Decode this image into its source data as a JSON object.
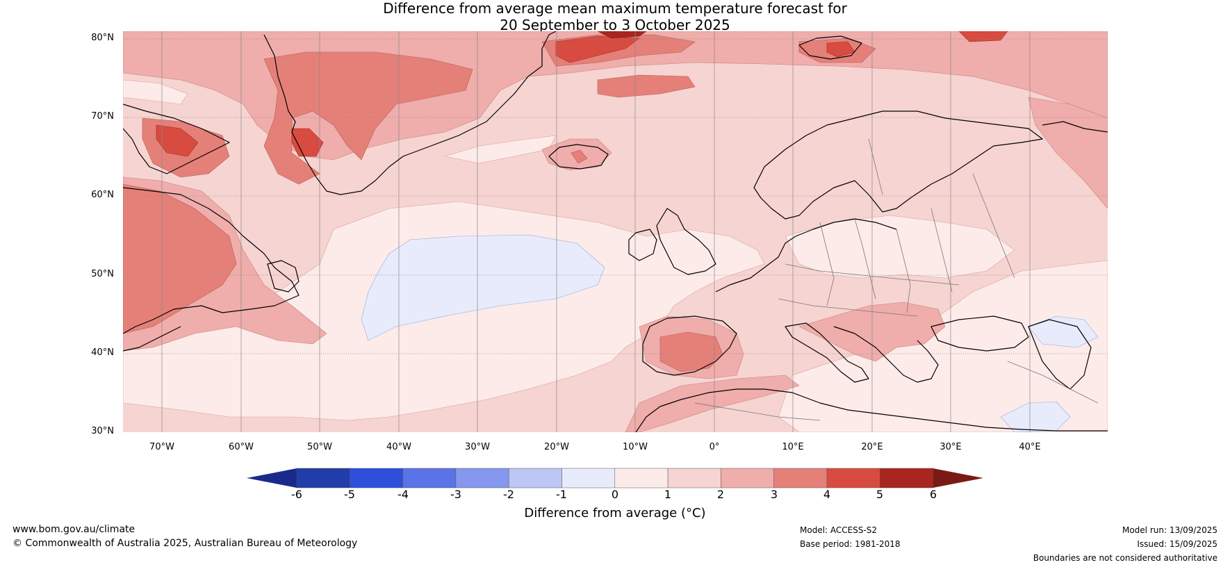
{
  "title": {
    "line1": "Difference from average mean maximum temperature forecast for",
    "line2": "20 September to 3 October 2025"
  },
  "map": {
    "lat_labels": [
      "80°N",
      "70°N",
      "60°N",
      "50°N",
      "40°N",
      "30°N"
    ],
    "lat_values": [
      80,
      70,
      60,
      50,
      40,
      30
    ],
    "lon_labels": [
      "70°W",
      "60°W",
      "50°W",
      "40°W",
      "30°W",
      "20°W",
      "10°W",
      "0°",
      "10°E",
      "20°E",
      "30°E",
      "40°E"
    ],
    "lon_values": [
      -70,
      -60,
      -50,
      -40,
      -30,
      -20,
      -10,
      0,
      10,
      20,
      30,
      40
    ],
    "lon_range": [
      -75,
      50
    ],
    "lat_range": [
      30,
      81
    ],
    "background_color": "#f6d4d1"
  },
  "colorbar": {
    "ticks": [
      "-6",
      "-5",
      "-4",
      "-3",
      "-2",
      "-1",
      "0",
      "1",
      "2",
      "3",
      "4",
      "5",
      "6"
    ],
    "colors": [
      "#213da9",
      "#2d4fdc",
      "#5a73e6",
      "#8697ee",
      "#bcc7f4",
      "#e7ebfb",
      "#fcebe9",
      "#f6d4d1",
      "#efadab",
      "#e58079",
      "#d84b40",
      "#a8261f"
    ],
    "under_color": "#1a2a8a",
    "over_color": "#7a1a16",
    "label": "Difference from average (°C)"
  },
  "footer": {
    "website": "www.bom.gov.au/climate",
    "copyright": "© Commonwealth of Australia 2025, Australian Bureau of Meteorology",
    "model": "Model: ACCESS-S2",
    "base_period": "Base period: 1981-2018",
    "model_run": "Model run: 13/09/2025",
    "issued": "Issued: 15/09/2025",
    "disclaimer": "Boundaries are not considered authoritative"
  }
}
